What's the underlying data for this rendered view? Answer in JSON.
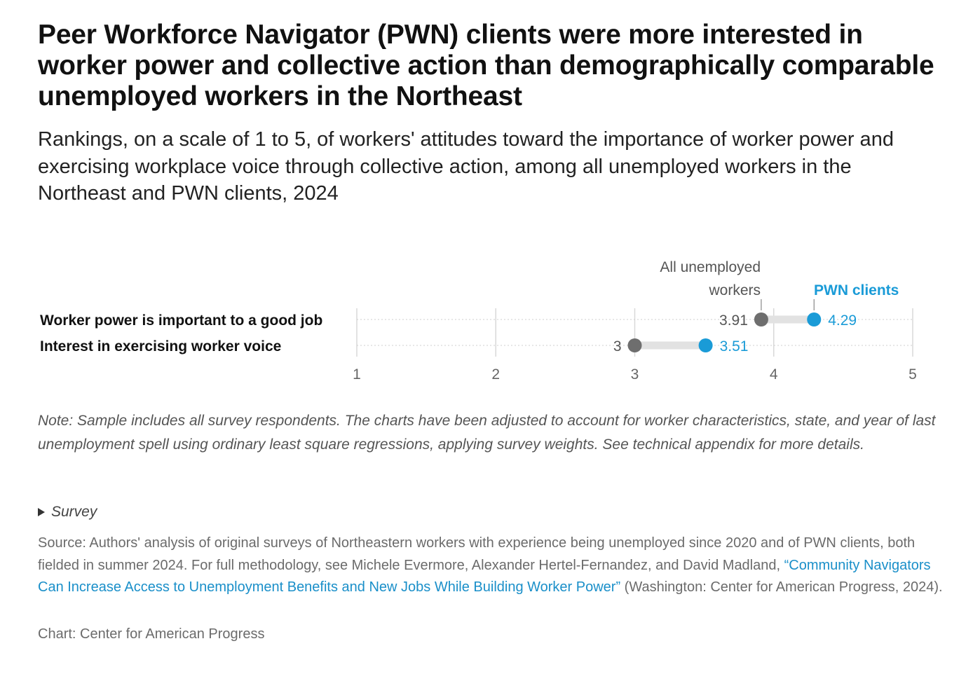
{
  "title": "Peer Workforce Navigator (PWN) clients were more interested in worker power and collective action than demographically comparable unemployed workers in the Northeast",
  "subtitle": "Rankings, on a scale of 1 to 5, of workers' attitudes toward the importance of worker power and exercising workplace voice through collective action, among all unemployed workers in the Northeast and PWN clients, 2024",
  "note": "Note: Sample includes all survey respondents. The charts have been adjusted to account for worker characteristics, state, and year of last unemployment spell using ordinary least square regressions, applying survey weights. See technical appendix for more details.",
  "survey_toggle": "Survey",
  "source": {
    "prefix": "Source: Authors' analysis of original surveys of Northeastern workers with experience being unemployed since 2020 and of PWN clients, both fielded in summer 2024. For full methodology, see Michele Evermore, Alexander Hertel-Fernandez, and David Madland, ",
    "link_text": "“Community Navigators Can Increase Access to Unemployment Benefits and New Jobs While Building Worker Power”",
    "suffix": " (Washington: Center for American Progress, 2024)."
  },
  "credit": "Chart: Center for American Progress",
  "colors": {
    "unemployed": "#6e6e6e",
    "pwn": "#1a9bd7",
    "connector": "#e2e2e2",
    "grid": "#d8d8d8"
  },
  "chart_data": {
    "type": "dot",
    "categories": [
      "Worker power is important to a good job",
      "Interest in exercising worker voice"
    ],
    "series": [
      {
        "name": "All unemployed workers",
        "values": [
          3.91,
          3
        ]
      },
      {
        "name": "PWN clients",
        "values": [
          4.29,
          3.51
        ]
      }
    ],
    "value_labels": {
      "All unemployed workers": [
        "3.91",
        "3"
      ],
      "PWN clients": [
        "4.29",
        "3.51"
      ]
    },
    "xlim": [
      1,
      5
    ],
    "xticks": [
      1,
      2,
      3,
      4,
      5
    ],
    "legend": [
      "All unemployed",
      "workers",
      "PWN clients"
    ]
  }
}
